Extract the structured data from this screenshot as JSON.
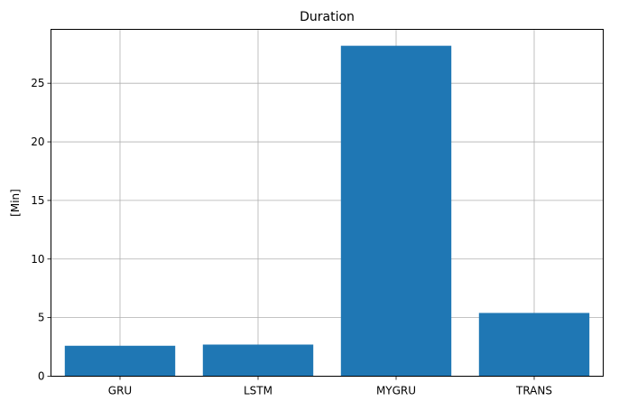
{
  "chart_data": {
    "type": "bar",
    "title": "Duration",
    "xlabel": "",
    "ylabel": "[Min]",
    "categories": [
      "GRU",
      "LSTM",
      "MYGRU",
      "TRANS"
    ],
    "values": [
      2.6,
      2.7,
      28.2,
      5.4
    ],
    "ylim": [
      0,
      29.6
    ],
    "yticks": [
      0,
      5,
      10,
      15,
      20,
      25
    ],
    "grid": true,
    "legend": "none",
    "bar_color": "#1f77b4",
    "grid_color": "#b0b0b0"
  }
}
